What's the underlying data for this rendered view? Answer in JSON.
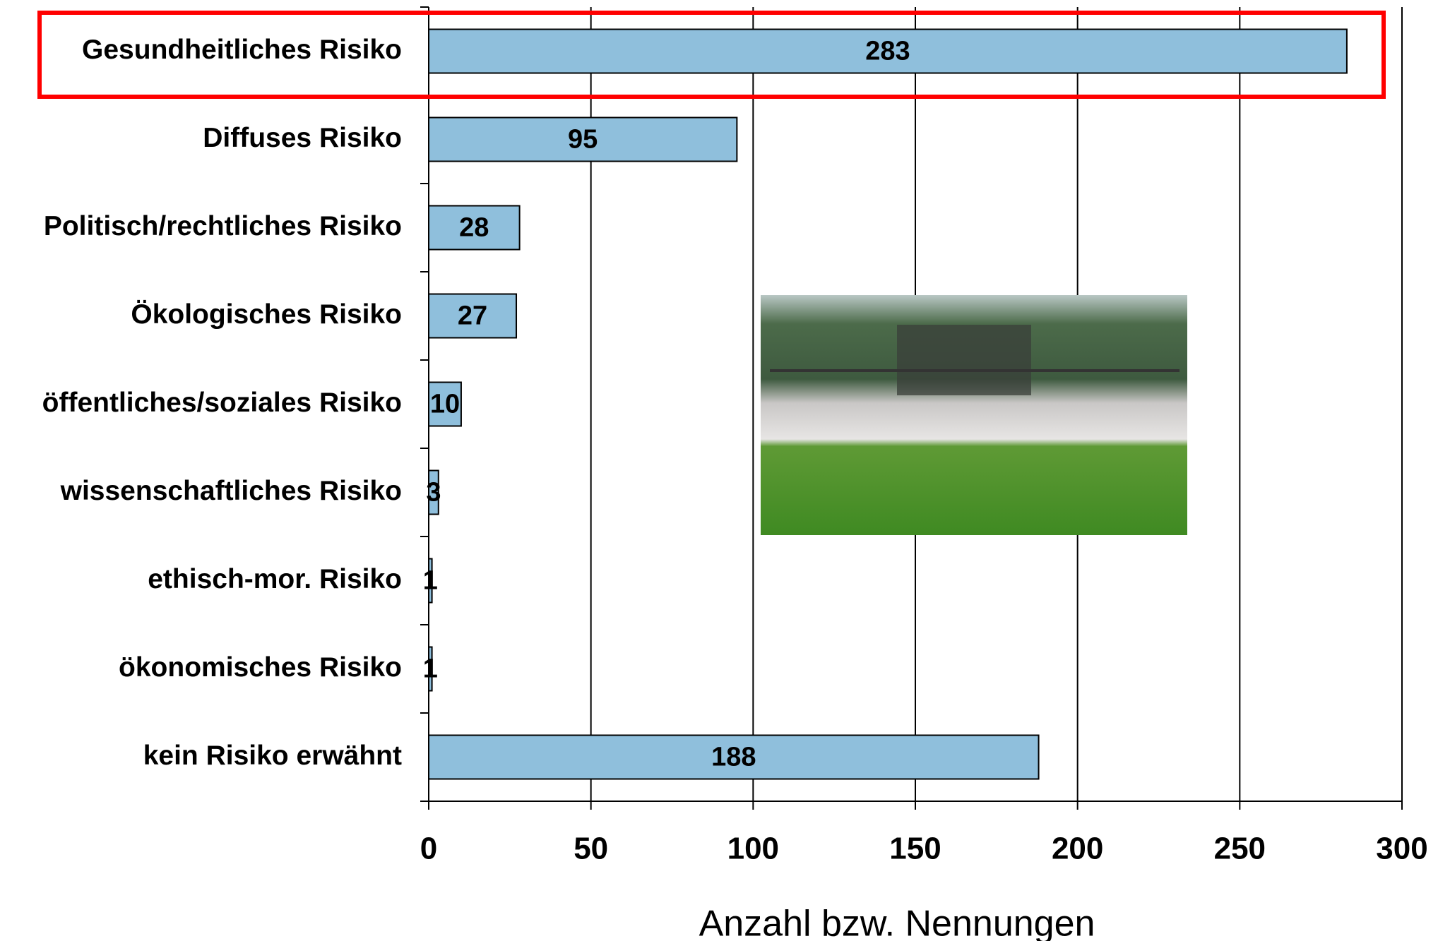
{
  "chart_data": {
    "type": "bar",
    "orientation": "horizontal",
    "categories": [
      "Gesundheitliches Risiko",
      "Diffuses Risiko",
      "Politisch/rechtliches Risiko",
      "Ökologisches Risiko",
      "öffentliches/soziales Risiko",
      "wissenschaftliches Risiko",
      "ethisch-mor. Risiko",
      "ökonomisches Risiko",
      "kein Risiko erwähnt"
    ],
    "values": [
      283,
      95,
      28,
      27,
      10,
      3,
      1,
      1,
      188
    ],
    "color": "#8fbfdc",
    "xlabel": "Anzahl bzw. Nennungen",
    "xlim": [
      0,
      300
    ],
    "xticks": [
      0,
      50,
      100,
      150,
      200,
      250,
      300
    ],
    "grid": true
  }
}
